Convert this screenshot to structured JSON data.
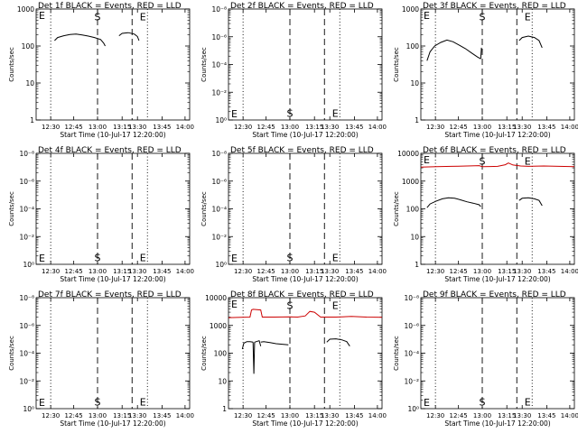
{
  "chart_data": [
    {
      "type": "line",
      "title": "Det 1f BLACK = Events, RED = LLD",
      "ylabel": "Counts/sec",
      "xlabel": "Start Time (10-Jul-17 12:20:00)",
      "yscale": "log",
      "yticks": [
        "1",
        "10",
        "100",
        "1000"
      ],
      "xticks": [
        "12:30",
        "12:45",
        "13:00",
        "13:15",
        "13:30",
        "13:45",
        "14:00"
      ],
      "markers": [
        "S",
        "E"
      ],
      "series": [
        {
          "color": "#000000",
          "segments": [
            {
              "x": [
                0.12,
                0.14,
                0.18,
                0.22,
                0.26,
                0.3,
                0.34,
                0.38,
                0.42,
                0.44,
                0.45
              ],
              "y": [
                140,
                170,
                190,
                205,
                210,
                200,
                185,
                170,
                150,
                120,
                100
              ]
            },
            {
              "x": [
                0.54,
                0.56,
                0.6,
                0.64,
                0.66,
                0.67
              ],
              "y": [
                190,
                220,
                230,
                210,
                180,
                140
              ]
            }
          ]
        }
      ]
    },
    {
      "type": "line",
      "title": "Det 2f BLACK = Events, RED = LLD",
      "ylabel": "Counts/sec",
      "xlabel": "Start Time (10-Jul-17 12:20:00)",
      "yscale": "log",
      "yticks": [
        "10⁰",
        "10⁻²",
        "10⁻⁴",
        "10⁻⁶",
        "10⁻⁸"
      ],
      "xticks": [
        "12:30",
        "12:45",
        "13:00",
        "13:15",
        "13:30",
        "13:45",
        "14:00"
      ],
      "markers": [
        "S",
        "E"
      ],
      "series": []
    },
    {
      "type": "line",
      "title": "Det 3f BLACK = Events, RED = LLD",
      "ylabel": "Counts/sec",
      "xlabel": "Start Time (10-Jul-17 12:20:00)",
      "yscale": "log",
      "yticks": [
        "1",
        "10",
        "100",
        "1000"
      ],
      "xticks": [
        "12:30",
        "12:45",
        "13:00",
        "13:15",
        "13:30",
        "13:45",
        "14:00"
      ],
      "markers": [
        "S",
        "E"
      ],
      "series": [
        {
          "color": "#000000",
          "segments": [
            {
              "x": [
                0.04,
                0.06,
                0.09,
                0.13,
                0.17,
                0.21,
                0.25,
                0.29,
                0.33,
                0.37,
                0.39
              ],
              "y": [
                40,
                70,
                100,
                125,
                145,
                130,
                105,
                85,
                65,
                50,
                45
              ]
            },
            {
              "x": [
                0.39,
                0.395
              ],
              "y": [
                45,
                90
              ]
            },
            {
              "x": [
                0.64,
                0.66,
                0.7,
                0.74,
                0.77,
                0.79
              ],
              "y": [
                140,
                170,
                185,
                170,
                140,
                90
              ]
            }
          ]
        }
      ]
    },
    {
      "type": "line",
      "title": "Det 4f BLACK = Events, RED = LLD",
      "ylabel": "Counts/sec",
      "xlabel": "Start Time (10-Jul-17 12:20:00)",
      "yscale": "log",
      "yticks": [
        "10⁰",
        "10⁻²",
        "10⁻⁴",
        "10⁻⁶",
        "10⁻⁸"
      ],
      "xticks": [
        "12:30",
        "12:45",
        "13:00",
        "13:15",
        "13:30",
        "13:45",
        "14:00"
      ],
      "markers": [
        "S",
        "E"
      ],
      "series": []
    },
    {
      "type": "line",
      "title": "Det 5f BLACK = Events, RED = LLD",
      "ylabel": "Counts/sec",
      "xlabel": "Start Time (10-Jul-17 12:20:00)",
      "yscale": "log",
      "yticks": [
        "10⁰",
        "10⁻²",
        "10⁻⁴",
        "10⁻⁶",
        "10⁻⁸"
      ],
      "xticks": [
        "12:30",
        "12:45",
        "13:00",
        "13:15",
        "13:30",
        "13:45",
        "14:00"
      ],
      "markers": [
        "S",
        "E"
      ],
      "series": []
    },
    {
      "type": "line",
      "title": "Det 6f BLACK = Events, RED = LLD",
      "ylabel": "Counts/sec",
      "xlabel": "Start Time (10-Jul-17 12:20:00)",
      "yscale": "log",
      "yticks": [
        "1",
        "10",
        "100",
        "1000",
        "10000"
      ],
      "xticks": [
        "12:30",
        "12:45",
        "13:00",
        "13:15",
        "13:30",
        "13:45",
        "14:00"
      ],
      "markers": [
        "S",
        "E"
      ],
      "series": [
        {
          "color": "#000000",
          "segments": [
            {
              "x": [
                0.04,
                0.06,
                0.1,
                0.14,
                0.18,
                0.22,
                0.26,
                0.3,
                0.34,
                0.38,
                0.39
              ],
              "y": [
                110,
                150,
                190,
                230,
                250,
                240,
                210,
                180,
                160,
                140,
                120
              ]
            },
            {
              "x": [
                0.64,
                0.66,
                0.7,
                0.74,
                0.77,
                0.79
              ],
              "y": [
                200,
                240,
                250,
                230,
                200,
                130
              ]
            }
          ]
        },
        {
          "color": "#cc0000",
          "segments": [
            {
              "x": [
                0.0,
                0.1,
                0.2,
                0.3,
                0.38,
                0.4,
                0.45,
                0.5,
                0.55,
                0.57,
                0.6,
                0.65,
                0.7,
                0.8,
                0.9,
                1.0
              ],
              "y": [
                3200,
                3300,
                3400,
                3500,
                3600,
                3300,
                3350,
                3400,
                3900,
                4500,
                3800,
                3500,
                3400,
                3500,
                3400,
                3300
              ]
            }
          ]
        }
      ]
    },
    {
      "type": "line",
      "title": "Det 7f BLACK = Events, RED = LLD",
      "ylabel": "Counts/sec",
      "xlabel": "Start Time (10-Jul-17 12:20:00)",
      "yscale": "log",
      "yticks": [
        "10⁰",
        "10⁻²",
        "10⁻⁴",
        "10⁻⁶",
        "10⁻⁸"
      ],
      "xticks": [
        "12:30",
        "12:45",
        "13:00",
        "13:15",
        "13:30",
        "13:45",
        "14:00"
      ],
      "markers": [
        "S",
        "E"
      ],
      "series": []
    },
    {
      "type": "line",
      "title": "Det 8f BLACK = Events, RED = LLD",
      "ylabel": "Counts/sec",
      "xlabel": "Start Time (10-Jul-17 12:20:00)",
      "yscale": "log",
      "yticks": [
        "1",
        "10",
        "100",
        "1000",
        "10000"
      ],
      "xticks": [
        "12:30",
        "12:45",
        "13:00",
        "13:15",
        "13:30",
        "13:45",
        "14:00"
      ],
      "markers": [
        "S",
        "E"
      ],
      "series": [
        {
          "color": "#000000",
          "segments": [
            {
              "x": [
                0.09,
                0.1,
                0.12,
                0.14,
                0.16
              ],
              "y": [
                140,
                230,
                260,
                260,
                250
              ]
            },
            {
              "x": [
                0.16,
                0.165,
                0.17
              ],
              "y": [
                250,
                18,
                250
              ]
            },
            {
              "x": [
                0.17,
                0.19,
                0.2,
                0.21
              ],
              "y": [
                250,
                270,
                280,
                180
              ]
            },
            {
              "x": [
                0.21,
                0.23,
                0.27,
                0.31,
                0.35,
                0.39
              ],
              "y": [
                250,
                260,
                240,
                220,
                210,
                200
              ]
            },
            {
              "x": [
                0.64,
                0.66,
                0.7,
                0.74,
                0.77,
                0.79
              ],
              "y": [
                250,
                320,
                330,
                300,
                260,
                180
              ]
            }
          ]
        },
        {
          "color": "#cc0000",
          "segments": [
            {
              "x": [
                0.0,
                0.08,
                0.14,
                0.15,
                0.16,
                0.21,
                0.22,
                0.3,
                0.4,
                0.45,
                0.5,
                0.53,
                0.56,
                0.6,
                0.7,
                0.8,
                0.9,
                1.0
              ],
              "y": [
                1900,
                1950,
                2000,
                3600,
                3800,
                3600,
                2000,
                2000,
                2050,
                2000,
                2200,
                3200,
                3000,
                2000,
                2000,
                2100,
                2000,
                1950
              ]
            }
          ]
        }
      ]
    },
    {
      "type": "line",
      "title": "Det 9f BLACK = Events, RED = LLD",
      "ylabel": "Counts/sec",
      "xlabel": "Start Time (10-Jul-17 12:20:00)",
      "yscale": "log",
      "yticks": [
        "10⁰",
        "10⁻²",
        "10⁻⁴",
        "10⁻⁶",
        "10⁻⁸"
      ],
      "xticks": [
        "12:30",
        "12:45",
        "13:00",
        "13:15",
        "13:30",
        "13:45",
        "14:00"
      ],
      "markers": [
        "S",
        "E"
      ],
      "series": []
    }
  ]
}
